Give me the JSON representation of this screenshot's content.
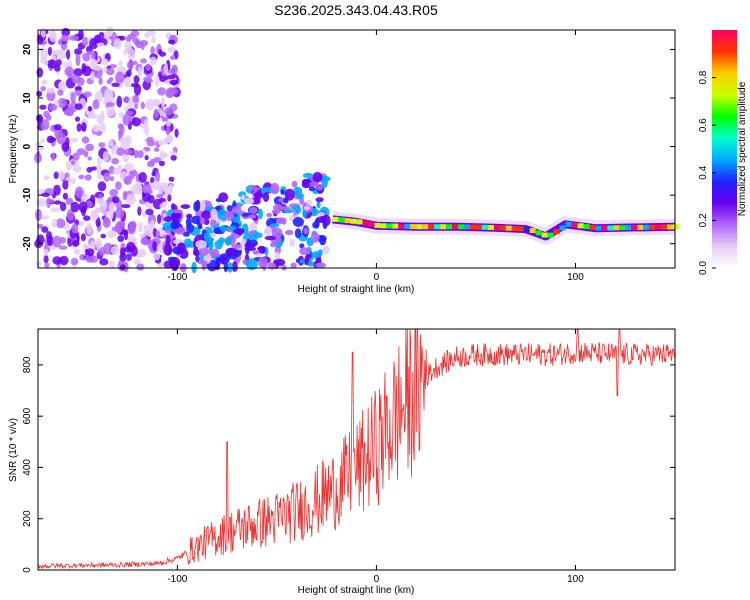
{
  "figure": {
    "title": "S236.2025.343.04.43.R05"
  },
  "chart_data": [
    {
      "type": "heatmap",
      "title": "",
      "xlabel": "Height of straight line (km)",
      "ylabel": "Frequency (Hz)",
      "xlim": [
        -170,
        150
      ],
      "ylim": [
        -25,
        24
      ],
      "x_ticks": [
        -100,
        0,
        100
      ],
      "y_ticks": [
        -20,
        -10,
        0,
        10,
        20
      ],
      "colorbar": {
        "label": "Normalized spectral amplitude",
        "range": [
          0,
          1
        ],
        "ticks": [
          0.0,
          0.2,
          0.4,
          0.6,
          0.8
        ],
        "colors": [
          "#ffffff",
          "#e6ccf5",
          "#b266ff",
          "#6600ee",
          "#2222ff",
          "#00aaff",
          "#00ffcc",
          "#00ff00",
          "#ccff00",
          "#ffcc00",
          "#ff3300",
          "#ff0066"
        ]
      },
      "regions": [
        {
          "name": "scattered noise",
          "x": [
            -170,
            -100
          ],
          "freq": [
            -25,
            24
          ],
          "amplitude": [
            0.05,
            0.3
          ]
        },
        {
          "name": "blob cluster",
          "x": [
            -105,
            -25
          ],
          "freq": [
            -25,
            -5
          ],
          "amplitude": [
            0.1,
            0.5
          ]
        },
        {
          "name": "carrier line",
          "x": [
            -22,
            150
          ],
          "freq_center": -16.5,
          "amplitude": [
            0.4,
            1.0
          ]
        }
      ],
      "carrier_line": [
        {
          "x": -22,
          "freq": -15.0
        },
        {
          "x": -10,
          "freq": -15.5
        },
        {
          "x": 0,
          "freq": -16.3
        },
        {
          "x": 20,
          "freq": -16.5
        },
        {
          "x": 40,
          "freq": -16.5
        },
        {
          "x": 60,
          "freq": -16.7
        },
        {
          "x": 75,
          "freq": -17.0
        },
        {
          "x": 85,
          "freq": -18.5
        },
        {
          "x": 95,
          "freq": -16.0
        },
        {
          "x": 110,
          "freq": -16.8
        },
        {
          "x": 150,
          "freq": -16.5
        }
      ]
    },
    {
      "type": "line",
      "title": "",
      "xlabel": "Height of straight line (km)",
      "ylabel": "SNR (10 * v/v)",
      "xlim": [
        -170,
        150
      ],
      "ylim": [
        0,
        940
      ],
      "x_ticks": [
        -100,
        0,
        100
      ],
      "y_ticks": [
        0,
        200,
        400,
        600,
        800
      ],
      "series": [
        {
          "color": "#ee3333",
          "x": [
            -170,
            -150,
            -130,
            -110,
            -100,
            -90,
            -80,
            -70,
            -60,
            -50,
            -40,
            -30,
            -20,
            -10,
            0,
            10,
            20,
            30,
            40,
            50,
            60,
            70,
            80,
            90,
            100,
            110,
            120,
            130,
            150
          ],
          "y": [
            15,
            18,
            20,
            25,
            45,
            90,
            130,
            160,
            180,
            200,
            230,
            270,
            320,
            390,
            480,
            600,
            720,
            790,
            830,
            840,
            840,
            840,
            840,
            840,
            850,
            845,
            840,
            840,
            840
          ]
        }
      ],
      "spikes": [
        {
          "x": -75,
          "y": 500
        },
        {
          "x": -12,
          "y": 850
        },
        {
          "x": 101,
          "y": 940
        },
        {
          "x": 122,
          "y": 940
        },
        {
          "x": 121,
          "y": 680
        }
      ]
    }
  ]
}
